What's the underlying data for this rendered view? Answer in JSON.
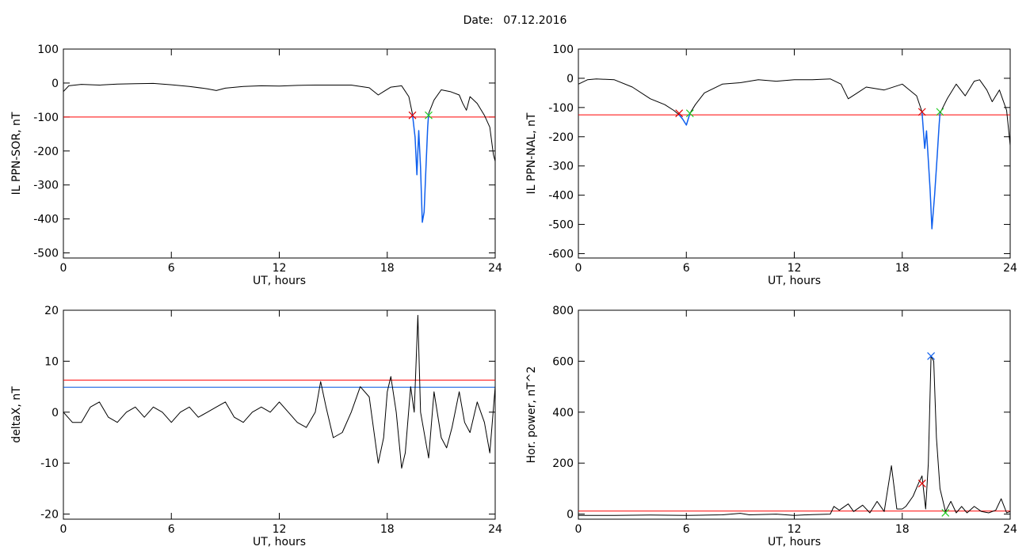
{
  "header": {
    "date_label": "Date:",
    "date_value": "07.12.2016"
  },
  "colors": {
    "trace": "#000000",
    "threshold_red": "#ff0000",
    "threshold_blue": "#0055dd",
    "event_blue": "#1060ee",
    "marker_red": "#dd0000",
    "marker_green": "#22cc22"
  },
  "chart_data": [
    {
      "type": "line",
      "xlabel": "UT, hours",
      "ylabel": "IL PPN-SOR, nT",
      "xlim": [
        0,
        24
      ],
      "ylim": [
        -515,
        100
      ],
      "xticks": [
        0,
        6,
        12,
        18,
        24
      ],
      "yticks": [
        -500,
        -400,
        -300,
        -200,
        -100,
        0,
        100
      ],
      "grid": false,
      "series": [
        {
          "values": [
            [
              0,
              -25
            ],
            [
              0.3,
              -8
            ],
            [
              1,
              -4
            ],
            [
              2,
              -6
            ],
            [
              3,
              -3
            ],
            [
              4,
              -2
            ],
            [
              5,
              -1
            ],
            [
              6,
              -5
            ],
            [
              7,
              -10
            ],
            [
              8,
              -17
            ],
            [
              8.5,
              -22
            ],
            [
              9,
              -15
            ],
            [
              10,
              -10
            ],
            [
              11,
              -8
            ],
            [
              12,
              -9
            ],
            [
              13,
              -7
            ],
            [
              14,
              -6
            ],
            [
              15,
              -6
            ],
            [
              16,
              -6
            ],
            [
              17,
              -14
            ],
            [
              17.5,
              -35
            ],
            [
              17.8,
              -25
            ],
            [
              18.2,
              -12
            ],
            [
              18.8,
              -8
            ],
            [
              19.2,
              -40
            ],
            [
              19.4,
              -90
            ]
          ]
        },
        {
          "values": [
            [
              20.3,
              -90
            ],
            [
              20.6,
              -50
            ],
            [
              21,
              -20
            ],
            [
              21.5,
              -25
            ],
            [
              22,
              -35
            ],
            [
              22.2,
              -60
            ],
            [
              22.4,
              -80
            ],
            [
              22.6,
              -40
            ],
            [
              23,
              -60
            ],
            [
              23.4,
              -95
            ],
            [
              23.7,
              -130
            ],
            [
              23.9,
              -210
            ],
            [
              24,
              -230
            ]
          ]
        }
      ],
      "event_series": {
        "values": [
          [
            19.4,
            -90
          ],
          [
            19.55,
            -160
          ],
          [
            19.65,
            -270
          ],
          [
            19.75,
            -140
          ],
          [
            19.85,
            -250
          ],
          [
            19.95,
            -410
          ],
          [
            20.05,
            -380
          ],
          [
            20.15,
            -250
          ],
          [
            20.25,
            -130
          ],
          [
            20.3,
            -90
          ]
        ]
      },
      "threshold": -100,
      "markers": [
        {
          "x": 19.4,
          "y": -95,
          "color": "red"
        },
        {
          "x": 20.3,
          "y": -95,
          "color": "green"
        }
      ]
    },
    {
      "type": "line",
      "xlabel": "UT, hours",
      "ylabel": "IL PPN-NAL, nT",
      "xlim": [
        0,
        24
      ],
      "ylim": [
        -615,
        100
      ],
      "xticks": [
        0,
        6,
        12,
        18,
        24
      ],
      "yticks": [
        -600,
        -500,
        -400,
        -300,
        -200,
        -100,
        0,
        100
      ],
      "grid": false,
      "series": [
        {
          "values": [
            [
              0,
              -20
            ],
            [
              0.5,
              -5
            ],
            [
              1,
              -2
            ],
            [
              2,
              -5
            ],
            [
              3,
              -30
            ],
            [
              4,
              -70
            ],
            [
              4.8,
              -90
            ],
            [
              5.3,
              -110
            ],
            [
              5.6,
              -125
            ]
          ]
        },
        {
          "values": [
            [
              6.2,
              -120
            ],
            [
              6.5,
              -90
            ],
            [
              7,
              -50
            ],
            [
              8,
              -20
            ],
            [
              9,
              -15
            ],
            [
              10,
              -5
            ],
            [
              11,
              -10
            ],
            [
              12,
              -5
            ],
            [
              13,
              -5
            ],
            [
              14,
              -2
            ],
            [
              14.6,
              -20
            ],
            [
              15,
              -70
            ],
            [
              15.5,
              -50
            ],
            [
              16,
              -30
            ],
            [
              17,
              -40
            ],
            [
              18,
              -20
            ],
            [
              18.8,
              -60
            ],
            [
              19.1,
              -115
            ]
          ]
        },
        {
          "values": [
            [
              20.1,
              -120
            ],
            [
              20.5,
              -70
            ],
            [
              21,
              -20
            ],
            [
              21.5,
              -60
            ],
            [
              22,
              -10
            ],
            [
              22.3,
              -5
            ],
            [
              22.7,
              -40
            ],
            [
              23,
              -80
            ],
            [
              23.4,
              -40
            ],
            [
              23.8,
              -110
            ],
            [
              24,
              -230
            ]
          ]
        }
      ],
      "event_series": {
        "values": [
          [
            5.6,
            -125
          ],
          [
            5.8,
            -140
          ],
          [
            6,
            -160
          ],
          [
            6.2,
            -120
          ]
        ],
        "extra": [
          [
            19.1,
            -115
          ],
          [
            19.25,
            -240
          ],
          [
            19.35,
            -180
          ],
          [
            19.55,
            -380
          ],
          [
            19.65,
            -515
          ],
          [
            19.8,
            -400
          ],
          [
            19.95,
            -260
          ],
          [
            20.05,
            -160
          ],
          [
            20.1,
            -120
          ]
        ]
      },
      "threshold": -125,
      "markers": [
        {
          "x": 5.6,
          "y": -120,
          "color": "red"
        },
        {
          "x": 6.2,
          "y": -120,
          "color": "green"
        },
        {
          "x": 19.1,
          "y": -115,
          "color": "red"
        },
        {
          "x": 20.1,
          "y": -115,
          "color": "green"
        }
      ]
    },
    {
      "type": "line",
      "xlabel": "UT, hours",
      "ylabel": "deltaX, nT",
      "xlim": [
        0,
        24
      ],
      "ylim": [
        -21,
        20
      ],
      "xticks": [
        0,
        6,
        12,
        18,
        24
      ],
      "yticks": [
        -20,
        -10,
        0,
        10,
        20
      ],
      "grid": false,
      "series": [
        {
          "values": [
            [
              0,
              0
            ],
            [
              0.5,
              -2
            ],
            [
              1,
              -2
            ],
            [
              1.5,
              1
            ],
            [
              2,
              2
            ],
            [
              2.5,
              -1
            ],
            [
              3,
              -2
            ],
            [
              3.5,
              0
            ],
            [
              4,
              1
            ],
            [
              4.5,
              -1
            ],
            [
              5,
              1
            ],
            [
              5.5,
              0
            ],
            [
              6,
              -2
            ],
            [
              6.5,
              0
            ],
            [
              7,
              1
            ],
            [
              7.5,
              -1
            ],
            [
              8,
              0
            ],
            [
              8.5,
              1
            ],
            [
              9,
              2
            ],
            [
              9.5,
              -1
            ],
            [
              10,
              -2
            ],
            [
              10.5,
              0
            ],
            [
              11,
              1
            ],
            [
              11.5,
              0
            ],
            [
              12,
              2
            ],
            [
              12.5,
              0
            ],
            [
              13,
              -2
            ],
            [
              13.5,
              -3
            ],
            [
              14,
              0
            ],
            [
              14.3,
              6
            ],
            [
              14.6,
              1
            ],
            [
              15,
              -5
            ],
            [
              15.5,
              -4
            ],
            [
              16,
              0
            ],
            [
              16.5,
              5
            ],
            [
              17,
              3
            ],
            [
              17.5,
              -10
            ],
            [
              17.8,
              -5
            ],
            [
              18,
              4
            ],
            [
              18.2,
              7
            ],
            [
              18.5,
              0
            ],
            [
              18.8,
              -11
            ],
            [
              19,
              -8
            ],
            [
              19.3,
              5
            ],
            [
              19.5,
              0
            ],
            [
              19.7,
              19
            ],
            [
              19.85,
              0
            ],
            [
              20,
              -3
            ],
            [
              20.3,
              -9
            ],
            [
              20.6,
              4
            ],
            [
              21,
              -5
            ],
            [
              21.3,
              -7
            ],
            [
              21.6,
              -3
            ],
            [
              22,
              4
            ],
            [
              22.3,
              -2
            ],
            [
              22.6,
              -4
            ],
            [
              23,
              2
            ],
            [
              23.4,
              -2
            ],
            [
              23.7,
              -8
            ],
            [
              24,
              5
            ]
          ]
        }
      ],
      "thresholds": [
        {
          "value": 6.3,
          "color": "red"
        },
        {
          "value": 4.9,
          "color": "blue"
        }
      ]
    },
    {
      "type": "line",
      "xlabel": "UT, hours",
      "ylabel": "Hor. power, nT^2",
      "xlim": [
        0,
        24
      ],
      "ylim": [
        -20,
        800
      ],
      "xticks": [
        0,
        6,
        12,
        18,
        24
      ],
      "yticks": [
        0,
        200,
        400,
        600,
        800
      ],
      "grid": false,
      "series": [
        {
          "values": [
            [
              0,
              -5
            ],
            [
              2,
              -5
            ],
            [
              4,
              -4
            ],
            [
              6,
              -5
            ],
            [
              8,
              -3
            ],
            [
              9,
              3
            ],
            [
              9.5,
              -3
            ],
            [
              11,
              0
            ],
            [
              12,
              -5
            ],
            [
              13,
              -2
            ],
            [
              14,
              0
            ],
            [
              14.2,
              30
            ],
            [
              14.5,
              15
            ],
            [
              15,
              40
            ],
            [
              15.3,
              10
            ],
            [
              15.8,
              35
            ],
            [
              16.2,
              5
            ],
            [
              16.6,
              50
            ],
            [
              17,
              10
            ],
            [
              17.4,
              190
            ],
            [
              17.7,
              20
            ],
            [
              18,
              20
            ],
            [
              18.2,
              30
            ],
            [
              18.6,
              70
            ],
            [
              18.9,
              120
            ],
            [
              19.1,
              150
            ],
            [
              19.3,
              20
            ],
            [
              19.45,
              200
            ],
            [
              19.6,
              620
            ],
            [
              19.75,
              600
            ],
            [
              19.9,
              300
            ],
            [
              20.1,
              100
            ],
            [
              20.4,
              10
            ],
            [
              20.7,
              50
            ],
            [
              21,
              5
            ],
            [
              21.3,
              30
            ],
            [
              21.6,
              5
            ],
            [
              22,
              30
            ],
            [
              22.4,
              10
            ],
            [
              22.8,
              5
            ],
            [
              23.2,
              15
            ],
            [
              23.5,
              60
            ],
            [
              23.8,
              5
            ],
            [
              24,
              10
            ]
          ]
        }
      ],
      "threshold": 12,
      "markers": [
        {
          "x": 19.1,
          "y": 120,
          "color": "red"
        },
        {
          "x": 19.6,
          "y": 620,
          "color": "blue"
        },
        {
          "x": 20.4,
          "y": 5,
          "color": "green"
        }
      ]
    }
  ]
}
